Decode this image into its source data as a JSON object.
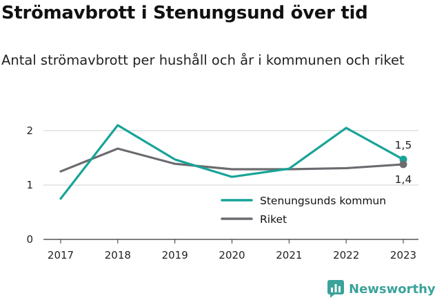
{
  "title": "Strömavbrott i Stenungsund över tid",
  "subtitle": "Antal strömavbrott per hushåll och år i kommunen och riket",
  "brand": {
    "name": "Newsworthy",
    "icon": "bar-chart-logo-icon",
    "color": "#3aa39a"
  },
  "chart_data": {
    "type": "line",
    "title": "Strömavbrott i Stenungsund över tid",
    "subtitle": "Antal strömavbrott per hushåll och år i kommunen och riket",
    "xlabel": "",
    "ylabel": "",
    "x": [
      "2017",
      "2018",
      "2019",
      "2020",
      "2021",
      "2022",
      "2023"
    ],
    "ylim": [
      0,
      2.1
    ],
    "yticks": [
      {
        "value": 0,
        "label": "0"
      },
      {
        "value": 1,
        "label": "1"
      },
      {
        "value": 2,
        "label": "2"
      }
    ],
    "grid": "horizontal",
    "legend_position": "bottom-right",
    "series": [
      {
        "name": "Stenungsunds kommun",
        "color": "#18a497",
        "values": [
          0.75,
          2.1,
          1.47,
          1.15,
          1.3,
          2.05,
          1.47
        ],
        "end_label": "1,5"
      },
      {
        "name": "Riket",
        "color": "#6b6b70",
        "values": [
          1.25,
          1.67,
          1.39,
          1.29,
          1.29,
          1.31,
          1.38
        ],
        "end_label": "1,4"
      }
    ]
  }
}
